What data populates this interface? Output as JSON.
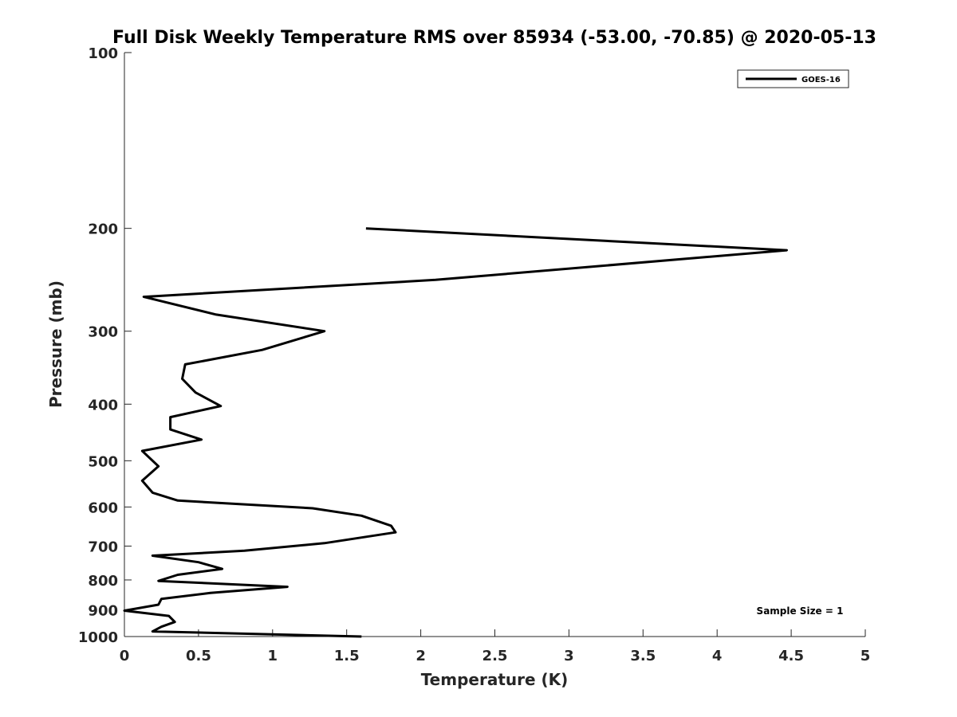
{
  "chart_data": {
    "type": "line",
    "title": "Full Disk Weekly Temperature RMS over 85934 (-53.00, -70.85) @ 2020-05-13",
    "xlabel": "Temperature (K)",
    "ylabel": "Pressure (mb)",
    "xlim": [
      0,
      5
    ],
    "ylim": [
      100,
      1000
    ],
    "y_scale": "log",
    "y_reversed": true,
    "grid": false,
    "x_ticks": [
      "0",
      "0.5",
      "1",
      "1.5",
      "2",
      "2.5",
      "3",
      "3.5",
      "4",
      "4.5",
      "5"
    ],
    "y_ticks": [
      "100",
      "200",
      "300",
      "400",
      "500",
      "600",
      "700",
      "800",
      "900",
      "1000"
    ],
    "legend_position": "top-right",
    "annotation": "Sample Size = 1",
    "series": [
      {
        "name": "GOES-16",
        "color": "#000000",
        "x": [
          1.63,
          4.47,
          2.1,
          0.13,
          0.62,
          1.35,
          0.93,
          0.41,
          0.39,
          0.48,
          0.65,
          0.31,
          0.31,
          0.52,
          0.12,
          0.23,
          0.12,
          0.19,
          0.36,
          1.27,
          1.6,
          1.8,
          1.83,
          1.35,
          0.81,
          0.19,
          0.5,
          0.66,
          0.36,
          0.23,
          1.1,
          0.58,
          0.25,
          0.23,
          0.0,
          0.3,
          0.34,
          0.25,
          0.19,
          1.6
        ],
        "y": [
          200,
          218,
          245,
          262,
          281,
          300,
          323,
          342,
          362,
          382,
          403,
          421,
          442,
          460,
          481,
          511,
          541,
          567,
          585,
          603,
          621,
          646,
          663,
          692,
          713,
          727,
          746,
          766,
          784,
          803,
          822,
          842,
          862,
          882,
          903,
          922,
          944,
          962,
          980,
          1000
        ]
      }
    ]
  }
}
